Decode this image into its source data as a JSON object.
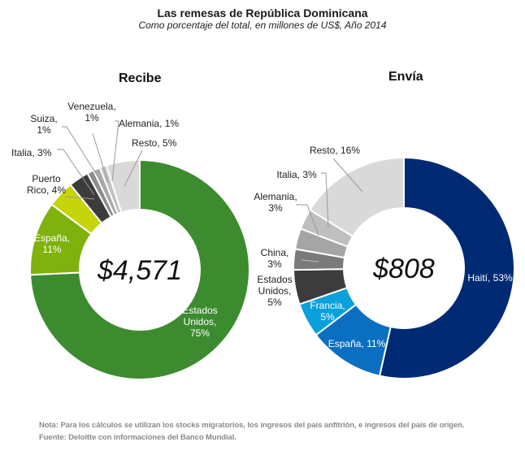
{
  "title": "Las remesas de República Dominicana",
  "subtitle": "Como porcentaje del total, en millones de US$, Año 2014",
  "chart_data": [
    {
      "type": "pie",
      "variant": "donut",
      "title": "Recibe",
      "center_label": "$4,571",
      "slices": [
        {
          "name": "Estados Unidos",
          "value": 75,
          "label_lines": [
            "Estados",
            "Unidos,",
            "75%"
          ],
          "color": "#3d8b2f",
          "label_color": "#ffffff"
        },
        {
          "name": "España",
          "value": 11,
          "label_lines": [
            "España,",
            "11%"
          ],
          "color": "#7fb20c",
          "label_color": "#ffffff"
        },
        {
          "name": "Puerto Rico",
          "value": 4,
          "label_lines": [
            "Puerto",
            "Rico, 4%"
          ],
          "color": "#c6d40a",
          "label_color": "#222222"
        },
        {
          "name": "Italia",
          "value": 3,
          "label_lines": [
            "Italia, 3%"
          ],
          "color": "#3c3c3c",
          "label_color": "#222222"
        },
        {
          "name": "Suiza",
          "value": 1,
          "label_lines": [
            "Suiza,",
            "1%"
          ],
          "color": "#8c8c8c",
          "label_color": "#222222"
        },
        {
          "name": "Venezuela",
          "value": 1,
          "label_lines": [
            "Venezuela,",
            "1%"
          ],
          "color": "#a8a8a8",
          "label_color": "#222222"
        },
        {
          "name": "Alemania",
          "value": 1,
          "label_lines": [
            "Alemania, 1%"
          ],
          "color": "#c2c2c2",
          "label_color": "#222222"
        },
        {
          "name": "Resto",
          "value": 5,
          "label_lines": [
            "Resto, 5%"
          ],
          "color": "#d9d9d9",
          "label_color": "#222222"
        }
      ]
    },
    {
      "type": "pie",
      "variant": "donut",
      "title": "Envía",
      "center_label": "$808",
      "slices": [
        {
          "name": "Haití",
          "value": 53,
          "label_lines": [
            "Haití, 53%"
          ],
          "color": "#002a73",
          "label_color": "#ffffff"
        },
        {
          "name": "España",
          "value": 11,
          "label_lines": [
            "España, 11%"
          ],
          "color": "#0b6fc1",
          "label_color": "#ffffff"
        },
        {
          "name": "Francia",
          "value": 5,
          "label_lines": [
            "Francia,",
            "5%"
          ],
          "color": "#0aa0dc",
          "label_color": "#ffffff"
        },
        {
          "name": "Estados Unidos",
          "value": 5,
          "label_lines": [
            "Estados",
            "Unidos,",
            "5%"
          ],
          "color": "#3c3c3c",
          "label_color": "#222222"
        },
        {
          "name": "China",
          "value": 3,
          "label_lines": [
            "China,",
            "3%"
          ],
          "color": "#7a7a7a",
          "label_color": "#222222"
        },
        {
          "name": "Alemania",
          "value": 3,
          "label_lines": [
            "Alemania,",
            "3%"
          ],
          "color": "#a5a5a5",
          "label_color": "#222222"
        },
        {
          "name": "Italia",
          "value": 3,
          "label_lines": [
            "Italia, 3%"
          ],
          "color": "#bfbfbf",
          "label_color": "#222222"
        },
        {
          "name": "Resto",
          "value": 16,
          "label_lines": [
            "Resto, 16%"
          ],
          "color": "#d9d9d9",
          "label_color": "#222222"
        }
      ]
    }
  ],
  "footnotes": {
    "note": "Nota: Para los cálculos se utilizan los stocks migratorios, los ingresos del país anfitrión, e ingresos del país de origen.",
    "source": "Fuente: Deloitte con informaciones del Banco Mundial."
  }
}
